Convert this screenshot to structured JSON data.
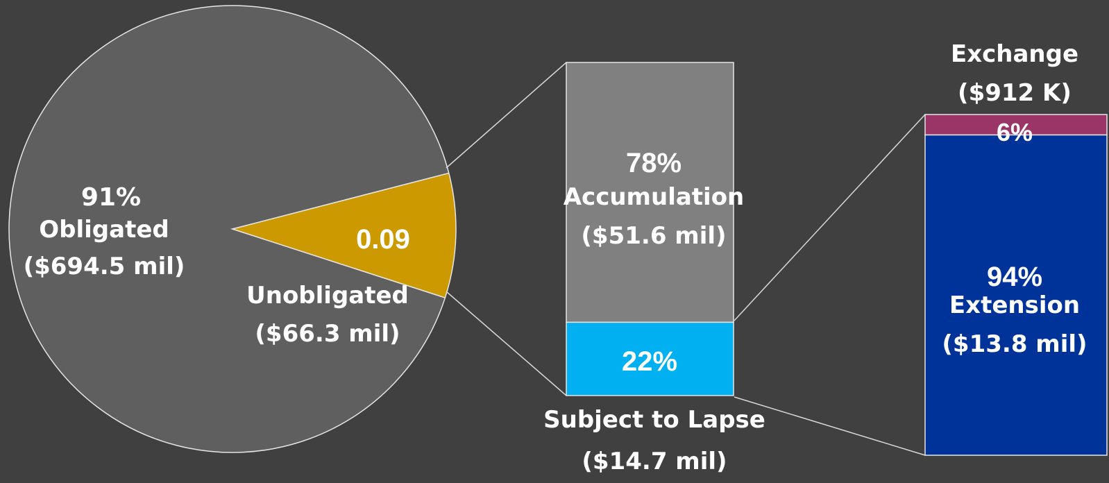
{
  "chart_data": [
    {
      "type": "pie",
      "slices": [
        {
          "name": "Obligated",
          "percent_label": "91%",
          "amount_label": "($694.5 mil)",
          "value": 0.91,
          "color": "#5f5f5f"
        },
        {
          "name": "Unobligated",
          "percent_label": "0.09",
          "amount_label": "($66.3 mil)",
          "value": 0.09,
          "color": "#cc9900"
        }
      ]
    },
    {
      "type": "bar",
      "stacked": true,
      "segments": [
        {
          "name": "Accumulation",
          "percent_label": "78%",
          "amount_label": "($51.6 mil)",
          "value": 78,
          "color": "#808080"
        },
        {
          "name": "Subject to Lapse",
          "percent_label": "22%",
          "amount_label": "($14.7 mil)",
          "value": 22,
          "color": "#00b0f0"
        }
      ]
    },
    {
      "type": "bar",
      "stacked": true,
      "segments": [
        {
          "name": "Exchange",
          "percent_label": "6%",
          "amount_label": "($912 K)",
          "value": 6,
          "color": "#9b3568"
        },
        {
          "name": "Extension",
          "percent_label": "94%",
          "amount_label": "($13.8 mil)",
          "value": 94,
          "color": "#003399"
        }
      ]
    }
  ]
}
